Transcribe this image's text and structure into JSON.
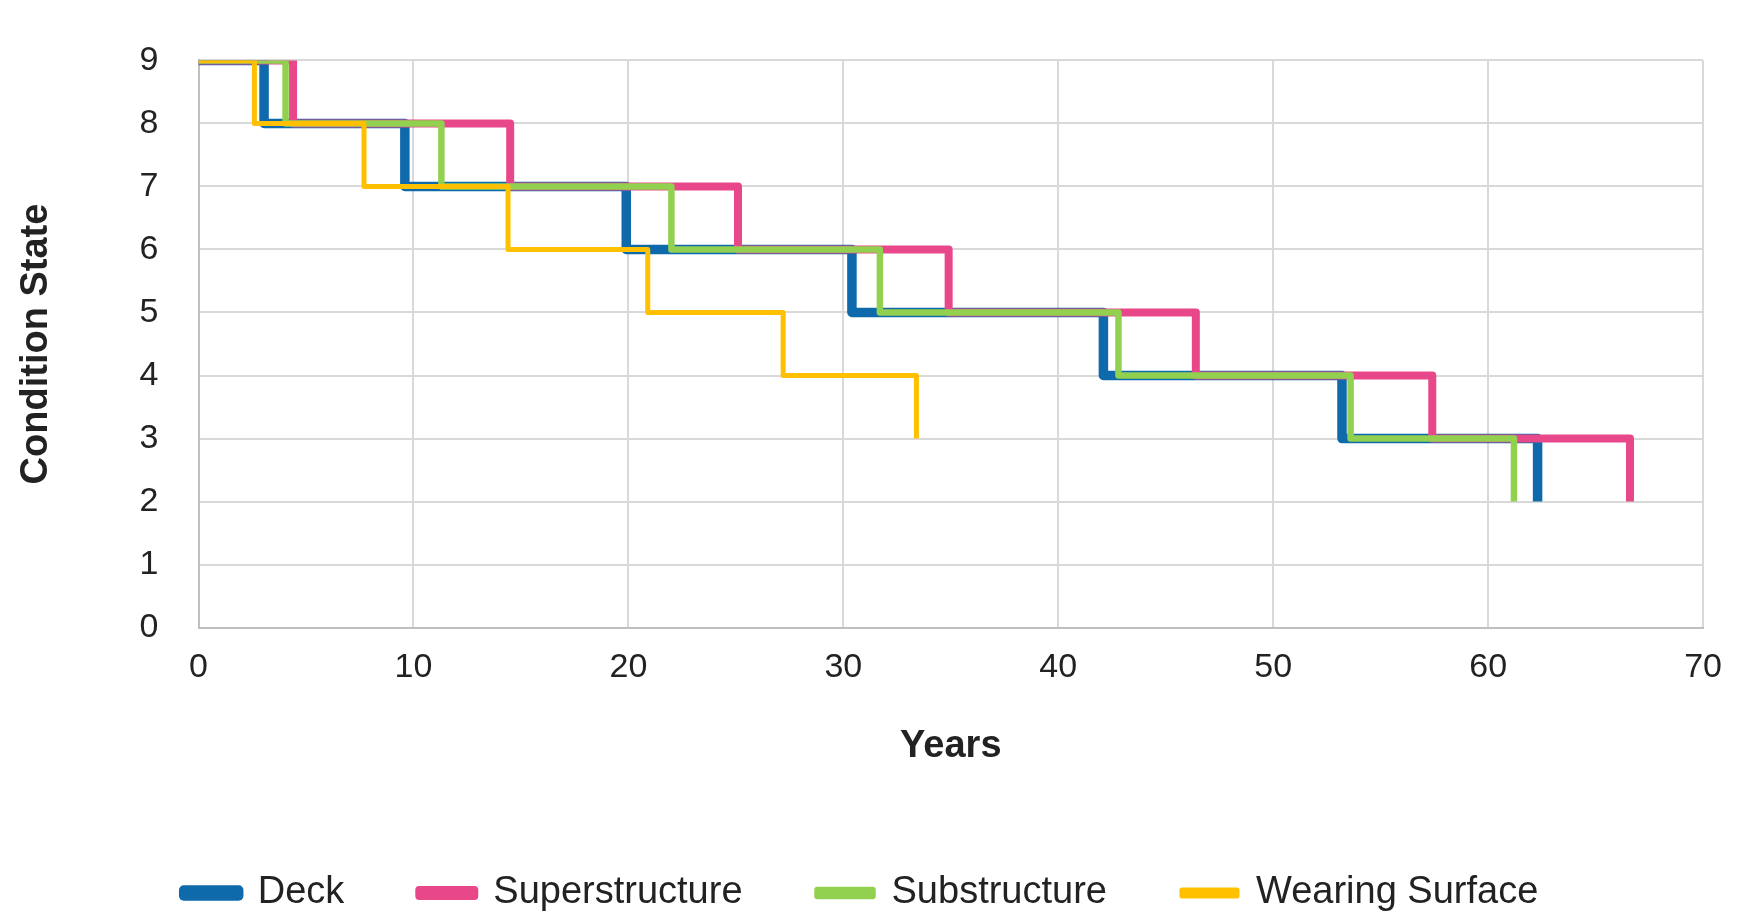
{
  "chart_data": {
    "type": "step",
    "xlabel": "Years",
    "ylabel": "Condition State",
    "xlim": [
      0,
      70
    ],
    "xticks": [
      0,
      10,
      20,
      30,
      40,
      50,
      60,
      70
    ],
    "ylim": [
      0,
      9
    ],
    "yticks": [
      0,
      1,
      2,
      3,
      4,
      5,
      6,
      7,
      8,
      9
    ],
    "grid": true,
    "legend": "bottom",
    "marker": "none",
    "series": [
      {
        "name": "Deck",
        "color": "#0e6aab",
        "x": [
          0,
          3.05,
          9.6,
          19.9,
          30.4,
          42.1,
          53.2,
          62.3
        ],
        "values": [
          9,
          8,
          7,
          6,
          5,
          4,
          3,
          2
        ]
      },
      {
        "name": "Superstructure",
        "color": "#e8488a",
        "x": [
          0,
          4.4,
          14.5,
          25.1,
          34.9,
          46.4,
          57.4,
          66.6
        ],
        "values": [
          9,
          8,
          7,
          6,
          5,
          4,
          3,
          2
        ]
      },
      {
        "name": "Substructure",
        "color": "#92d050",
        "x": [
          0,
          4.05,
          11.3,
          22.0,
          31.7,
          42.8,
          53.6,
          61.2
        ],
        "values": [
          9,
          8,
          7,
          6,
          5,
          4,
          3,
          2
        ]
      },
      {
        "name": "Wearing Surface",
        "color": "#ffc000",
        "x": [
          0,
          2.6,
          7.7,
          14.4,
          20.9,
          27.2,
          33.4
        ],
        "values": [
          9,
          8,
          7,
          6,
          5,
          4,
          3
        ]
      }
    ]
  }
}
